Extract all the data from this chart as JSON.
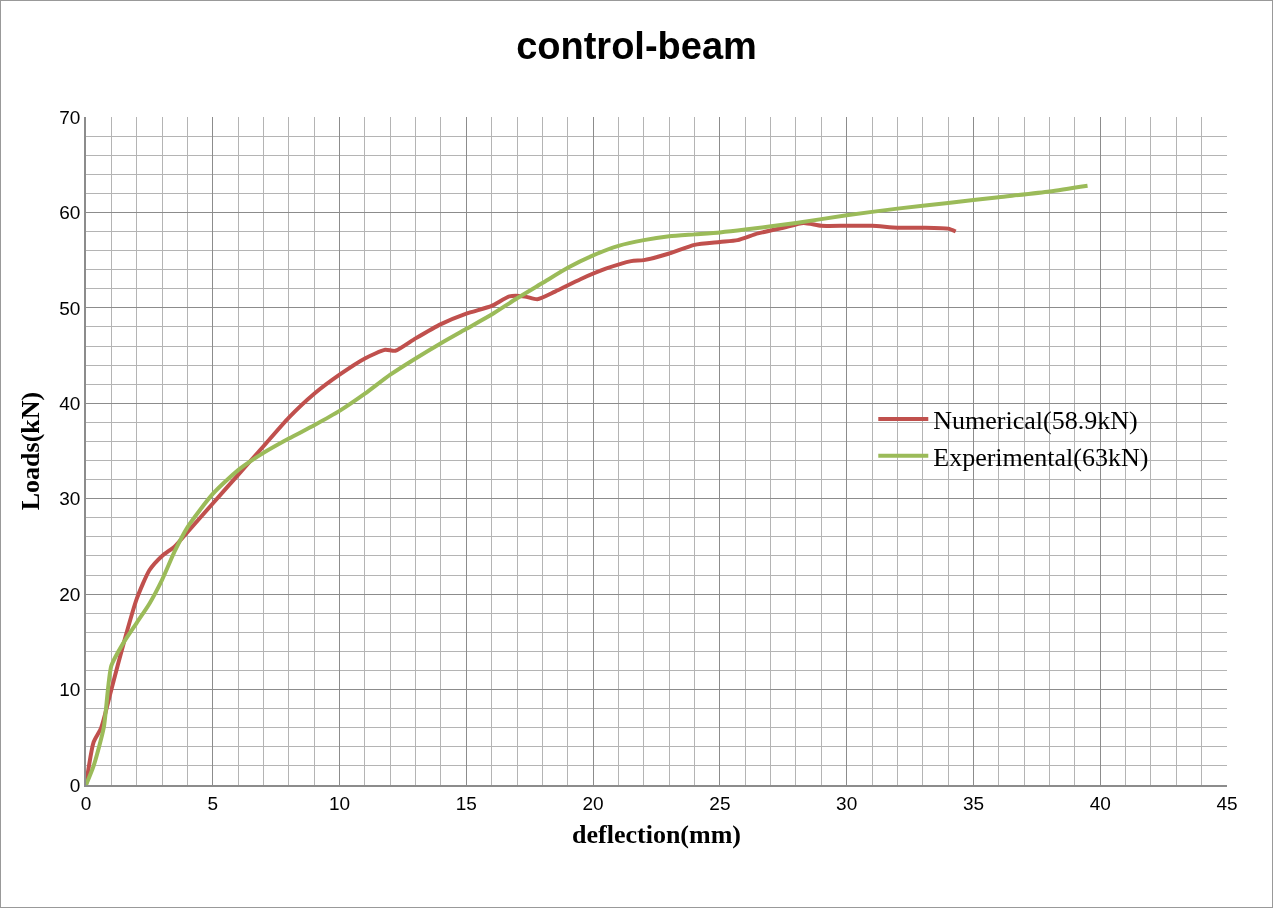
{
  "chart_data": {
    "type": "line",
    "title": "control-beam",
    "xlabel": "deflection(mm)",
    "ylabel": "Loads(kN)",
    "xlim": [
      0,
      45
    ],
    "xticks": [
      0,
      5,
      10,
      15,
      20,
      25,
      30,
      35,
      40,
      45
    ],
    "ylim": [
      0,
      70
    ],
    "yticks": [
      0,
      10,
      20,
      30,
      40,
      50,
      60,
      70
    ],
    "grid": true,
    "legend": "right",
    "marker": "none",
    "line_style": "solid",
    "series": [
      {
        "name": "Numerical(58.9kN)",
        "color": "#c0504d",
        "x": [
          0,
          0.3,
          0.6,
          1,
          1.5,
          2,
          2.5,
          3,
          3.5,
          4,
          5,
          6,
          7,
          8,
          9,
          10,
          11,
          11.8,
          12.2,
          13,
          14,
          15,
          16,
          16.7,
          17.3,
          17.8,
          18.5,
          19.5,
          20.5,
          21.5,
          22,
          23,
          24,
          25,
          25.7,
          26.5,
          27.5,
          28.3,
          29,
          30,
          31,
          32,
          33,
          34,
          34.3
        ],
        "values": [
          0,
          4.5,
          6,
          10,
          15,
          19.5,
          22.5,
          24,
          25,
          26.5,
          29.5,
          32.5,
          35.5,
          38.5,
          41,
          43,
          44.7,
          45.6,
          45.5,
          46.8,
          48.3,
          49.4,
          50.2,
          51.2,
          51.2,
          50.9,
          51.7,
          53,
          54.1,
          54.9,
          55,
          55.7,
          56.6,
          56.9,
          57.1,
          57.8,
          58.4,
          58.9,
          58.6,
          58.6,
          58.6,
          58.4,
          58.4,
          58.3,
          58
        ]
      },
      {
        "name": "Experimental(63kN)",
        "color": "#9bbb59",
        "x": [
          0,
          0.3,
          0.7,
          1,
          1.5,
          2,
          2.5,
          3,
          3.5,
          4,
          5,
          6,
          7,
          8,
          9,
          10,
          11,
          12,
          13,
          14,
          15,
          16,
          17,
          18,
          19,
          20,
          21,
          22,
          23,
          24,
          25,
          26,
          28,
          30,
          32,
          34,
          36,
          38,
          39.5
        ],
        "values": [
          0,
          2,
          6,
          12.5,
          15,
          17,
          19,
          21.5,
          24.5,
          27,
          30.5,
          33,
          34.8,
          36.3,
          37.7,
          39.2,
          41,
          43,
          44.7,
          46.3,
          47.8,
          49.3,
          51,
          52.6,
          54.2,
          55.5,
          56.5,
          57.1,
          57.5,
          57.7,
          57.9,
          58.2,
          58.9,
          59.7,
          60.4,
          61,
          61.6,
          62.2,
          62.8
        ]
      }
    ]
  }
}
